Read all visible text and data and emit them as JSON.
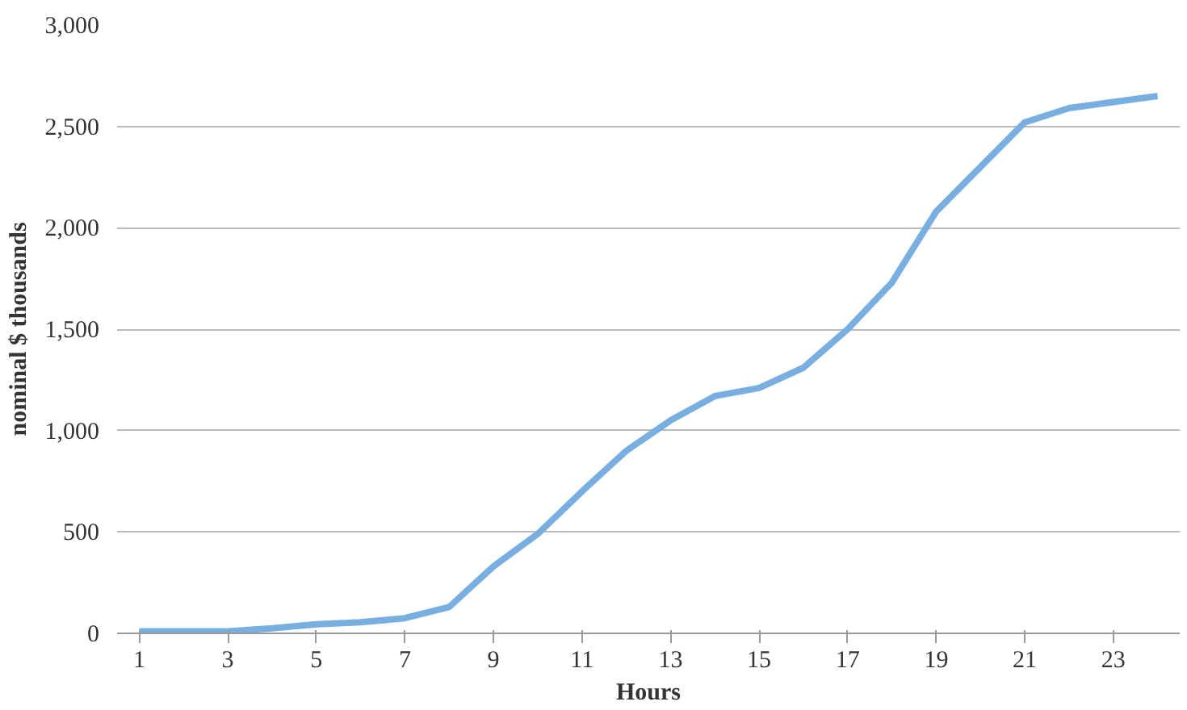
{
  "chart_data": {
    "type": "line",
    "xlabel": "Hours",
    "ylabel": "nominal $ thousands",
    "x": [
      1,
      2,
      3,
      4,
      5,
      6,
      7,
      8,
      9,
      10,
      11,
      12,
      13,
      14,
      15,
      16,
      17,
      18,
      19,
      20,
      21,
      22,
      23,
      24
    ],
    "series": [
      {
        "color": "#78aee0",
        "values": [
          10,
          10,
          10,
          25,
          45,
          55,
          75,
          130,
          330,
          490,
          700,
          900,
          1050,
          1170,
          1210,
          1310,
          1500,
          1730,
          2080,
          2300,
          2520,
          2590,
          2620,
          2650
        ]
      }
    ],
    "xlim": [
      0.5,
      24.5
    ],
    "xticks": [
      1,
      3,
      5,
      7,
      9,
      11,
      13,
      15,
      17,
      19,
      21,
      23
    ],
    "ylim": [
      0,
      3000
    ],
    "yticks": [
      {
        "value": 0,
        "label": "0"
      },
      {
        "value": 500,
        "label": "500"
      },
      {
        "value": 1000,
        "label": "1,000"
      },
      {
        "value": 1500,
        "label": "1,500"
      },
      {
        "value": 2000,
        "label": "2,000"
      },
      {
        "value": 2500,
        "label": "2,500"
      },
      {
        "value": 3000,
        "label": "3,000"
      }
    ],
    "grid": "y",
    "marker": "none",
    "line_style": "solid"
  }
}
